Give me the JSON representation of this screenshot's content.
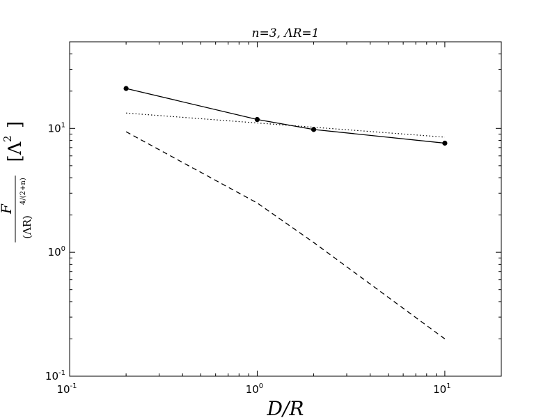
{
  "chart_data": {
    "type": "line",
    "title": "n=3, ΛR=1",
    "xlabel": "D/R",
    "ylabel": {
      "numerator": "F",
      "denominator": "(ΛR)",
      "denominator_exponent": "4/(2+n)",
      "units": "[Λ",
      "units_exponent": "2",
      "units_close": "]"
    },
    "xscale": "log",
    "yscale": "log",
    "xlim": [
      0.1,
      20
    ],
    "ylim": [
      0.1,
      50
    ],
    "xticks": [
      {
        "value": 0.1,
        "base": "10",
        "exp": "-1"
      },
      {
        "value": 1,
        "base": "10",
        "exp": "0"
      },
      {
        "value": 10,
        "base": "10",
        "exp": "1"
      }
    ],
    "yticks": [
      {
        "value": 0.1,
        "base": "10",
        "exp": "-1"
      },
      {
        "value": 1,
        "base": "10",
        "exp": "0"
      },
      {
        "value": 10,
        "base": "10",
        "exp": "1"
      }
    ],
    "series": [
      {
        "style": "solid-markers",
        "color": "#000000",
        "x": [
          0.2,
          1,
          2,
          10
        ],
        "y": [
          21,
          11.8,
          9.8,
          7.6
        ]
      },
      {
        "style": "dotted",
        "color": "#000000",
        "x": [
          0.2,
          10
        ],
        "y": [
          13.3,
          8.5
        ]
      },
      {
        "style": "dashed",
        "color": "#000000",
        "x": [
          0.2,
          1,
          2,
          10
        ],
        "y": [
          9.4,
          2.5,
          1.2,
          0.2
        ]
      }
    ],
    "grid": false,
    "legend": "none"
  }
}
